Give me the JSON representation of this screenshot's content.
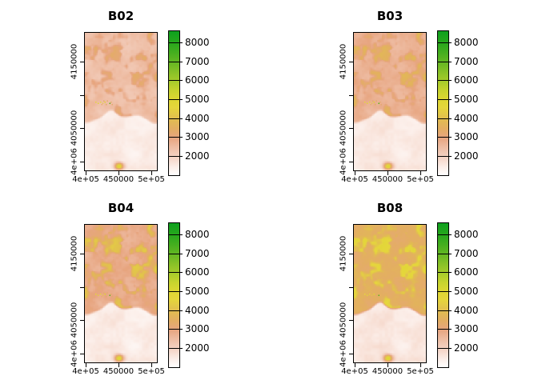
{
  "chart_data": {
    "type": "heatmap",
    "description": "Four raster map panels of Sentinel-2 reflectance bands plotted with shared coordinate axes and identical color legends",
    "panels": [
      {
        "band": "B02",
        "title": "B02",
        "grid": [
          0,
          0
        ],
        "top_region": {
          "mean": 2500,
          "spread": 450,
          "patch_peak": 3300
        },
        "bottom_region": {
          "mean": 1500,
          "spread": 320
        }
      },
      {
        "band": "B03",
        "title": "B03",
        "grid": [
          1,
          0
        ],
        "top_region": {
          "mean": 2800,
          "spread": 430,
          "patch_peak": 3700
        },
        "bottom_region": {
          "mean": 1550,
          "spread": 320
        }
      },
      {
        "band": "B04",
        "title": "B04",
        "grid": [
          0,
          1
        ],
        "top_region": {
          "mean": 2950,
          "spread": 520,
          "patch_peak": 4200
        },
        "bottom_region": {
          "mean": 1500,
          "spread": 360
        }
      },
      {
        "band": "B08",
        "title": "B08",
        "grid": [
          1,
          1
        ],
        "top_region": {
          "mean": 3550,
          "spread": 380,
          "patch_peak": 4700
        },
        "bottom_region": {
          "mean": 1600,
          "spread": 360
        }
      }
    ],
    "x_axis": {
      "domain": [
        397600,
        509700
      ],
      "ticks": [
        {
          "value": 400000,
          "label": "4e+05"
        },
        {
          "value": 450000,
          "label": "450000"
        },
        {
          "value": 500000,
          "label": "5e+05"
        }
      ]
    },
    "y_axis": {
      "domain": [
        3985000,
        4195000
      ],
      "ticks": [
        {
          "value": 4000000,
          "label": "4e+06"
        },
        {
          "value": 4050000,
          "label": "4050000"
        },
        {
          "value": 4100000,
          "label": ""
        },
        {
          "value": 4150000,
          "label": "4150000"
        }
      ]
    },
    "legend": {
      "domain": [
        1030,
        8630
      ],
      "ticks": [
        {
          "value": 2000,
          "label": "2000"
        },
        {
          "value": 3000,
          "label": "3000"
        },
        {
          "value": 4000,
          "label": "4000"
        },
        {
          "value": 5000,
          "label": "5000"
        },
        {
          "value": 6000,
          "label": "6000"
        },
        {
          "value": 7000,
          "label": "7000"
        },
        {
          "value": 8000,
          "label": "8000"
        }
      ],
      "color_stops": [
        [
          1030,
          "#ffffff"
        ],
        [
          1500,
          "#fbece6"
        ],
        [
          2000,
          "#f4d3c4"
        ],
        [
          2500,
          "#eebda4"
        ],
        [
          3000,
          "#e7a580"
        ],
        [
          3500,
          "#e3ae62"
        ],
        [
          4000,
          "#e1bd50"
        ],
        [
          4600,
          "#e5d63c"
        ],
        [
          5000,
          "#ded733"
        ],
        [
          5500,
          "#c8d42e"
        ],
        [
          6000,
          "#a6cb2b"
        ],
        [
          6500,
          "#87c127"
        ],
        [
          7000,
          "#64b722"
        ],
        [
          7500,
          "#45ae1f"
        ],
        [
          8000,
          "#28a81c"
        ],
        [
          8630,
          "#0ea01e"
        ]
      ]
    },
    "shared_features": {
      "land_boundary_fraction": 0.627,
      "hotspot": {
        "x_fraction": 0.46,
        "y_fraction": 0.965,
        "value_peak": 4900
      },
      "speck_cluster": {
        "x_fraction": 0.25,
        "y_fraction": 0.505,
        "green_dot_value": 7200
      }
    }
  }
}
